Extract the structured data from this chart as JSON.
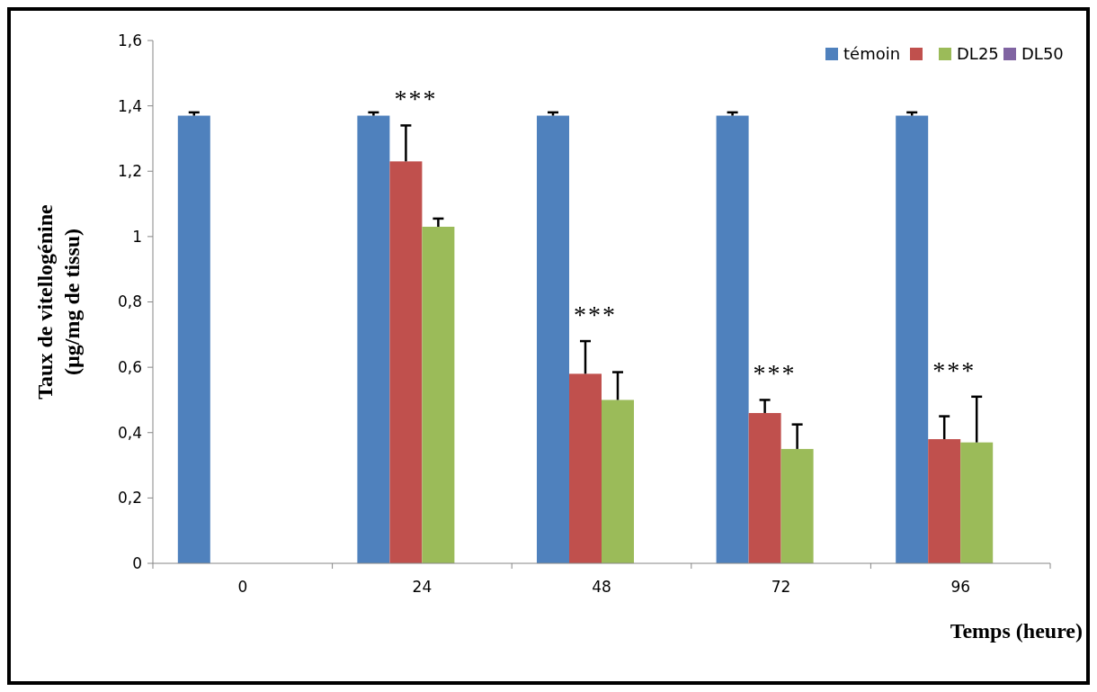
{
  "chart_data": {
    "type": "bar",
    "xlabel": "Temps (heure)",
    "ylabel": "Taux de vitellogénine\n(µg/mg de tissu)",
    "categories": [
      "0",
      "24",
      "48",
      "72",
      "96"
    ],
    "series": [
      {
        "name": "témoin",
        "color": "#4f81bd",
        "values": [
          1.37,
          1.37,
          1.37,
          1.37,
          1.37
        ],
        "errors": [
          0.01,
          0.01,
          0.01,
          0.01,
          0.01
        ]
      },
      {
        "color": "#c0504d",
        "values": [
          null,
          1.23,
          0.58,
          0.46,
          0.38
        ],
        "errors": [
          null,
          0.11,
          0.1,
          0.04,
          0.07
        ]
      },
      {
        "name": "DL25",
        "color": "#9bbb59",
        "values": [
          null,
          1.03,
          0.5,
          0.35,
          0.37
        ],
        "errors": [
          null,
          0.025,
          0.085,
          0.075,
          0.14
        ]
      },
      {
        "name": "DL50",
        "color": "#8064a2",
        "values": [
          null,
          null,
          null,
          null,
          null
        ]
      }
    ],
    "ylim": [
      0,
      1.6
    ],
    "yticks": [
      0,
      {
        "value": 0.2,
        "label": "0,2"
      },
      {
        "value": 0.4,
        "label": "0,4"
      },
      {
        "value": 0.6,
        "label": "0,6"
      },
      {
        "value": 0.8,
        "label": "0,8"
      },
      1,
      {
        "value": 1.2,
        "label": "1,2"
      },
      {
        "value": 1.4,
        "label": "1,4"
      },
      {
        "value": 1.6,
        "label": "1,6"
      }
    ],
    "annotations": [
      "***",
      "***",
      "***",
      "***"
    ],
    "grid": false,
    "legend": "top right"
  }
}
